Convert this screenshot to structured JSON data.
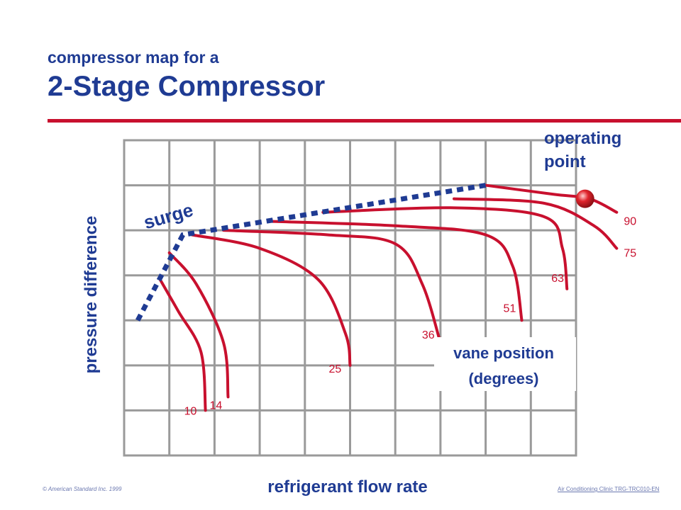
{
  "slide": {
    "subtitle": "compressor map for a",
    "title": "2-Stage Compressor",
    "footer_left": "© American Standard Inc. 1999",
    "footer_right": "Air Conditioning Clinic TRG-TRC010-EN"
  },
  "colors": {
    "title": "#1f3b93",
    "rule": "#c8102e",
    "curve": "#c8102e",
    "surge_line": "#1f3b93",
    "grid": "#9a9a9a",
    "operating_point": "#e0242c"
  },
  "chart_data": {
    "type": "line",
    "title": "",
    "xlabel": "refrigerant flow rate",
    "ylabel": "pressure difference",
    "axis_ticks_printed": false,
    "grid": true,
    "series_label_title_line1": "vane position",
    "series_label_title_line2": "(degrees)",
    "series": [
      {
        "name": "10",
        "label": "10",
        "points": [
          [
            0.8,
            3.9
          ],
          [
            1.2,
            3.2
          ],
          [
            1.7,
            2.3
          ],
          [
            1.8,
            1.0
          ]
        ]
      },
      {
        "name": "14",
        "label": "14",
        "points": [
          [
            1.0,
            4.5
          ],
          [
            1.6,
            3.8
          ],
          [
            2.2,
            2.5
          ],
          [
            2.3,
            1.3
          ]
        ]
      },
      {
        "name": "25",
        "label": "25",
        "points": [
          [
            1.5,
            4.9
          ],
          [
            3.0,
            4.6
          ],
          [
            4.3,
            3.9
          ],
          [
            4.9,
            2.7
          ],
          [
            5.0,
            2.0
          ]
        ]
      },
      {
        "name": "36",
        "label": "36",
        "points": [
          [
            2.2,
            5.0
          ],
          [
            4.5,
            4.9
          ],
          [
            6.0,
            4.7
          ],
          [
            6.6,
            3.8
          ],
          [
            7.0,
            2.5
          ]
        ]
      },
      {
        "name": "51",
        "label": "51",
        "points": [
          [
            3.2,
            5.2
          ],
          [
            6.0,
            5.1
          ],
          [
            8.0,
            4.9
          ],
          [
            8.6,
            4.2
          ],
          [
            8.8,
            3.0
          ]
        ]
      },
      {
        "name": "63",
        "label": "63",
        "points": [
          [
            4.4,
            5.4
          ],
          [
            7.3,
            5.5
          ],
          [
            9.3,
            5.3
          ],
          [
            9.7,
            4.6
          ],
          [
            9.8,
            3.7
          ]
        ]
      },
      {
        "name": "75",
        "label": "75",
        "points": [
          [
            7.3,
            5.7
          ],
          [
            9.3,
            5.6
          ],
          [
            10.4,
            5.1
          ],
          [
            10.9,
            4.6
          ]
        ]
      },
      {
        "name": "90",
        "label": "90",
        "points": [
          [
            8.0,
            6.0
          ],
          [
            9.5,
            5.8
          ],
          [
            10.3,
            5.7
          ],
          [
            10.9,
            5.4
          ]
        ]
      }
    ],
    "surge_line": {
      "label": "surge",
      "points": [
        [
          0.3,
          3.0
        ],
        [
          1.3,
          4.9
        ],
        [
          8.0,
          6.0
        ]
      ]
    },
    "operating_point": {
      "label_line1": "operating",
      "label_line2": "point",
      "x": 10.2,
      "y": 5.7
    }
  }
}
